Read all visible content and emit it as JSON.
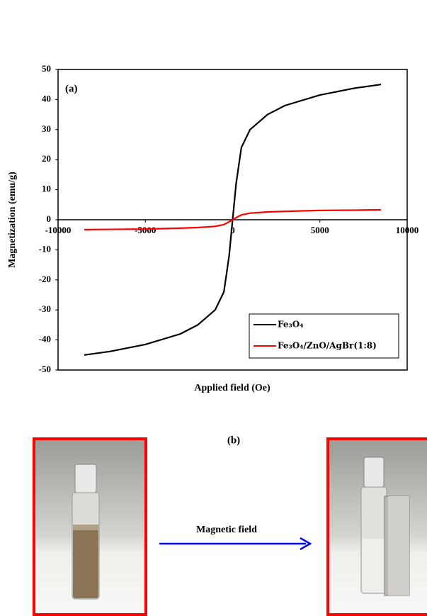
{
  "chart_data": {
    "type": "line",
    "panel_label": "(a)",
    "ylabel": "Magnetization (emu/g)",
    "xlabel": "Applied field (Oe)",
    "x": [
      -8500,
      -7000,
      -5000,
      -3000,
      -2000,
      -1000,
      -500,
      -200,
      0,
      200,
      500,
      1000,
      2000,
      3000,
      5000,
      7000,
      8500
    ],
    "series": [
      {
        "name": "Fe₃O₄",
        "color": "#000000",
        "values": [
          -45,
          -43.8,
          -41.5,
          -38,
          -35,
          -30,
          -24,
          -12,
          0,
          12,
          24,
          30,
          35,
          38,
          41.5,
          43.8,
          45
        ]
      },
      {
        "name": "Fe₃O₄/ZnO/AgBr(1:8)",
        "color": "#ff0000",
        "values": [
          -3.3,
          -3.2,
          -3.1,
          -2.8,
          -2.6,
          -2.2,
          -1.6,
          -0.7,
          0,
          0.7,
          1.6,
          2.2,
          2.6,
          2.8,
          3.1,
          3.2,
          3.3
        ]
      }
    ],
    "xlim": [
      -10000,
      10000
    ],
    "xticks": [
      -10000,
      -5000,
      0,
      5000,
      10000
    ],
    "ylim": [
      -50,
      50
    ],
    "yticks": [
      -50,
      -40,
      -30,
      -20,
      -10,
      0,
      10,
      20,
      30,
      40,
      50
    ],
    "grid": false,
    "legend": "lower right"
  },
  "panel_b": {
    "label": "(b)",
    "arrow_label": "Magnetic field"
  }
}
